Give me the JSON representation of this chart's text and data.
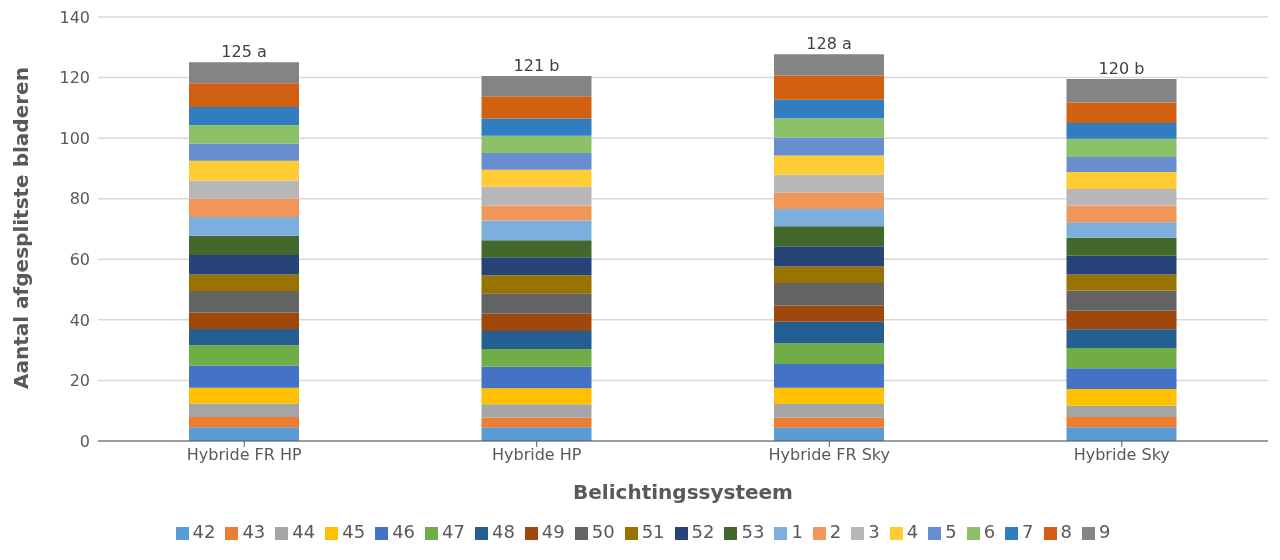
{
  "chart_data": {
    "type": "bar",
    "stacked": true,
    "xlabel": "Belichtingssysteem",
    "ylabel": "Aantal afgesplitste bladeren",
    "categories": [
      "Hybride FR HP",
      "Hybride HP",
      "Hybride FR Sky",
      "Hybride Sky"
    ],
    "ylim": [
      0,
      140
    ],
    "yticks": [
      0,
      20,
      40,
      60,
      80,
      100,
      120,
      140
    ],
    "grid": "y",
    "legend": "bottom",
    "totals": [
      "125 a",
      "121 b",
      "128 a",
      "120 b"
    ],
    "series": [
      {
        "name": "42",
        "color": "#5b9bd5",
        "values": [
          4.5,
          4.5,
          4.4,
          4.5
        ]
      },
      {
        "name": "43",
        "color": "#ed7d31",
        "values": [
          3.4,
          3.2,
          3.3,
          3.4
        ]
      },
      {
        "name": "44",
        "color": "#a5a5a5",
        "values": [
          4.5,
          4.4,
          4.5,
          3.7
        ]
      },
      {
        "name": "45",
        "color": "#ffc000",
        "values": [
          5.2,
          5.3,
          5.4,
          5.6
        ]
      },
      {
        "name": "46",
        "color": "#4472c4",
        "values": [
          7.3,
          7.1,
          7.8,
          6.8
        ]
      },
      {
        "name": "47",
        "color": "#70ad47",
        "values": [
          6.7,
          5.9,
          6.9,
          6.7
        ]
      },
      {
        "name": "48",
        "color": "#255e91",
        "values": [
          5.4,
          5.9,
          7.1,
          6.2
        ]
      },
      {
        "name": "49",
        "color": "#9e480e",
        "values": [
          5.4,
          5.7,
          5.3,
          6.1
        ]
      },
      {
        "name": "50",
        "color": "#636363",
        "values": [
          7.1,
          6.8,
          7.5,
          6.7
        ]
      },
      {
        "name": "51",
        "color": "#997300",
        "values": [
          5.5,
          5.9,
          5.4,
          5.3
        ]
      },
      {
        "name": "52",
        "color": "#264478",
        "values": [
          6.4,
          6.0,
          6.7,
          6.2
        ]
      },
      {
        "name": "53",
        "color": "#43682b",
        "values": [
          6.4,
          5.6,
          6.6,
          5.9
        ]
      },
      {
        "name": "1",
        "color": "#7cafdd",
        "values": [
          6.2,
          6.5,
          5.7,
          5.1
        ]
      },
      {
        "name": "2",
        "color": "#f1975a",
        "values": [
          6.1,
          5.0,
          5.4,
          5.6
        ]
      },
      {
        "name": "3",
        "color": "#b7b7b7",
        "values": [
          5.9,
          6.2,
          5.9,
          5.4
        ]
      },
      {
        "name": "4",
        "color": "#ffcd33",
        "values": [
          6.5,
          5.6,
          6.4,
          5.6
        ]
      },
      {
        "name": "5",
        "color": "#698ed0",
        "values": [
          5.7,
          5.5,
          5.9,
          5.0
        ]
      },
      {
        "name": "6",
        "color": "#8cc168",
        "values": [
          6.1,
          5.7,
          6.4,
          6.0
        ]
      },
      {
        "name": "7",
        "color": "#327dc2",
        "values": [
          6.0,
          5.7,
          6.1,
          5.2
        ]
      },
      {
        "name": "8",
        "color": "#d26012",
        "values": [
          7.8,
          7.3,
          8.0,
          6.8
        ]
      },
      {
        "name": "9",
        "color": "#848484",
        "values": [
          7.0,
          6.7,
          7.0,
          7.7
        ]
      }
    ]
  }
}
